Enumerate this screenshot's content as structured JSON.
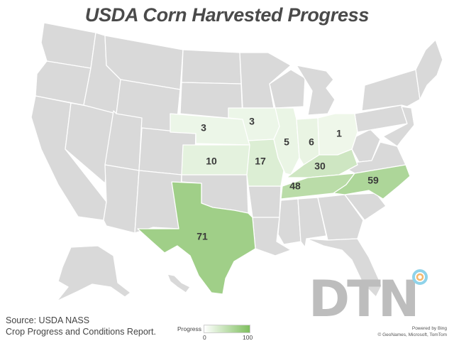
{
  "title": "USDA Corn Harvested Progress",
  "source_line1": "Source: USDA NASS",
  "source_line2": "Crop Progress and Conditions Report.",
  "legend": {
    "title": "Progress",
    "min": "0",
    "max": "100",
    "color_low": "#ffffff",
    "color_high": "#7fbf5f"
  },
  "powered_by": "Powered by Bing",
  "map_credits": "© GeoNames, Microsoft, TomTom",
  "logo_text": "DTN",
  "colors": {
    "no_data": "#d9d9d9",
    "border": "#ffffff"
  },
  "states": [
    {
      "name": "Nebraska",
      "value": 3
    },
    {
      "name": "Iowa",
      "value": 3
    },
    {
      "name": "Illinois",
      "value": 5
    },
    {
      "name": "Indiana",
      "value": 6
    },
    {
      "name": "Ohio",
      "value": 1
    },
    {
      "name": "Kansas",
      "value": 10
    },
    {
      "name": "Missouri",
      "value": 17
    },
    {
      "name": "Kentucky",
      "value": 30
    },
    {
      "name": "Tennessee",
      "value": 48
    },
    {
      "name": "North Carolina",
      "value": 59
    },
    {
      "name": "Texas",
      "value": 71
    }
  ]
}
